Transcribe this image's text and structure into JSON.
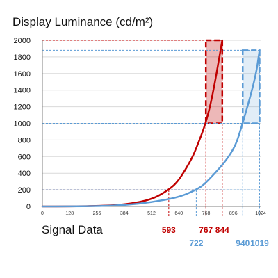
{
  "chart_data": {
    "type": "line",
    "title": "Display Luminance (cd/m²)",
    "xlabel": "Signal Data",
    "ylabel": "",
    "xlim": [
      0,
      1024
    ],
    "ylim": [
      0,
      2000
    ],
    "xticks": [
      "0",
      "128",
      "256",
      "384",
      "512",
      "640",
      "768",
      "896",
      "1024"
    ],
    "yticks": [
      "0",
      "200",
      "400",
      "600",
      "800",
      "1000",
      "1200",
      "1400",
      "1600",
      "1800",
      "2000"
    ],
    "grid": "horizontal",
    "series": [
      {
        "color": "#c00000",
        "x": [
          0,
          128,
          256,
          384,
          512,
          593,
          640,
          700,
          722,
          767,
          800,
          844
        ],
        "y": [
          0,
          1,
          5,
          20,
          80,
          200,
          310,
          570,
          700,
          1000,
          1350,
          2000
        ]
      },
      {
        "color": "#5b9bd5",
        "x": [
          0,
          128,
          256,
          384,
          512,
          640,
          722,
          768,
          896,
          940,
          1000,
          1019
        ],
        "y": [
          0,
          1,
          4,
          15,
          50,
          110,
          200,
          280,
          650,
          1000,
          1550,
          1880
        ]
      }
    ],
    "annotations": {
      "red": {
        "color": "#c00000",
        "labels": [
          "593",
          "767",
          "844"
        ],
        "x": [
          593,
          767,
          844
        ],
        "y": [
          200,
          1000,
          2000
        ]
      },
      "blue": {
        "color": "#5b9bd5",
        "labels": [
          "722",
          "940",
          "1019"
        ],
        "x": [
          722,
          940,
          1019
        ],
        "y": [
          200,
          1000,
          1880
        ]
      }
    },
    "axis_color": "#808080",
    "grid_color": "#d9d9d9"
  }
}
